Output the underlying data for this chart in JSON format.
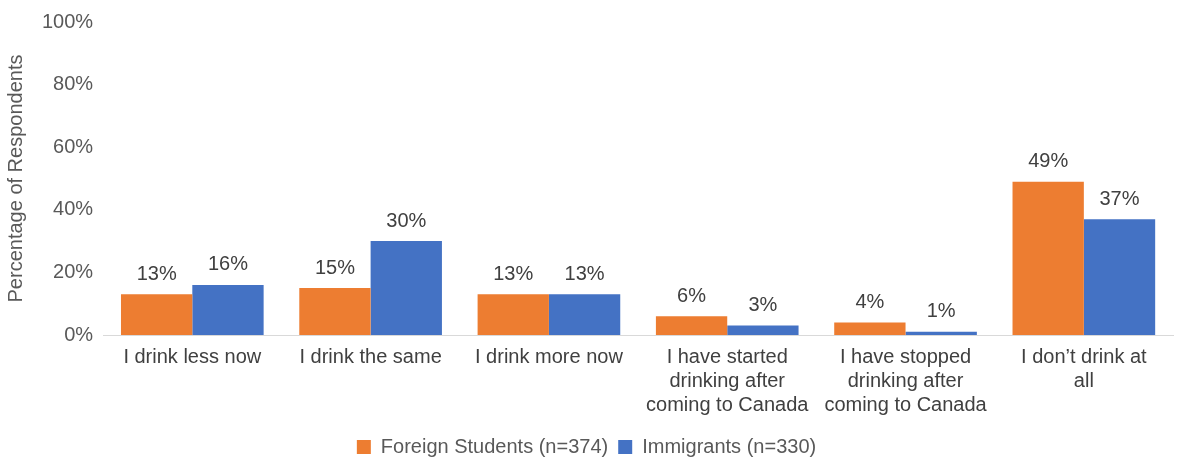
{
  "chart_data": {
    "type": "bar",
    "ylabel": "Percentage of Respondents",
    "categories": [
      "I drink less now",
      "I drink the same",
      "I drink more now",
      "I have started drinking after coming to Canada",
      "I have stopped drinking after coming to Canada",
      "I don’t drink at all"
    ],
    "series": [
      {
        "name": "Foreign Students (n=374)",
        "color": "#ed7d31",
        "values": [
          13,
          15,
          13,
          6,
          4,
          49
        ],
        "value_labels": [
          "13%",
          "15%",
          "13%",
          "6%",
          "4%",
          "49%"
        ]
      },
      {
        "name": "Immigrants (n=330)",
        "color": "#4472c4",
        "values": [
          16,
          30,
          13,
          3,
          1,
          37
        ],
        "value_labels": [
          "16%",
          "30%",
          "13%",
          "3%",
          "1%",
          "37%"
        ]
      }
    ],
    "ylim": [
      0,
      100
    ],
    "yticks": [
      {
        "value": 0,
        "label": "0%"
      },
      {
        "value": 20,
        "label": "20%"
      },
      {
        "value": 40,
        "label": "40%"
      },
      {
        "value": 60,
        "label": "60%"
      },
      {
        "value": 80,
        "label": "80%"
      },
      {
        "value": 100,
        "label": "100%"
      }
    ],
    "grid": false,
    "legend": "bottom"
  }
}
